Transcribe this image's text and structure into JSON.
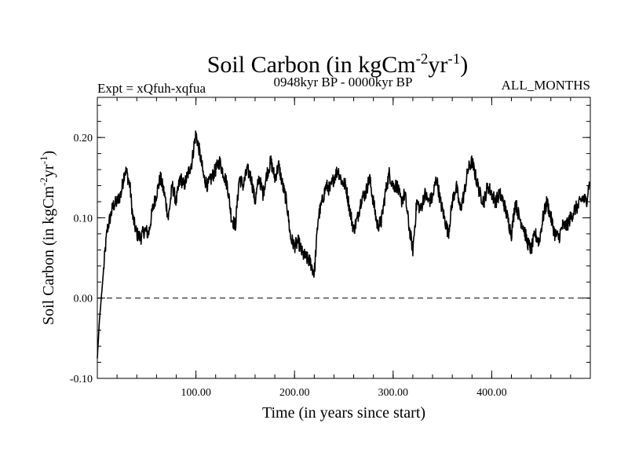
{
  "chart_data": {
    "type": "line",
    "title": {
      "prefix": "Soil Carbon (in kgCm",
      "sup1": "-2",
      "mid": "yr",
      "sup2": "-1",
      "suffix": ")"
    },
    "subtitle_left": "Expt = xQfuh-xqfua",
    "subtitle_center": "0948kyr BP - 0000kyr BP",
    "subtitle_right": "ALL_MONTHS",
    "xlabel": "Time (in years since start)",
    "ylabel": {
      "prefix": "Soil Carbon (in kgCm",
      "sup1": "-2",
      "mid": "yr",
      "sup2": "-1",
      "suffix": ")"
    },
    "xlim": [
      0,
      500
    ],
    "ylim": [
      -0.1,
      0.25
    ],
    "x_ticks": [
      100,
      200,
      300,
      400
    ],
    "x_tick_labels": [
      "100.00",
      "200.00",
      "300.00",
      "400.00"
    ],
    "y_ticks": [
      -0.1,
      0.0,
      0.1,
      0.2
    ],
    "y_tick_labels": [
      "-0.10",
      "0.00",
      "0.10",
      "0.20"
    ],
    "reference_line": {
      "y": 0.0,
      "style": "dashed"
    },
    "series": [
      {
        "name": "Soil Carbon",
        "color": "#000000",
        "x": [
          0,
          2,
          4,
          6,
          8,
          10,
          13,
          16,
          20,
          24,
          28,
          30,
          33,
          36,
          40,
          44,
          48,
          52,
          56,
          60,
          64,
          68,
          72,
          76,
          80,
          84,
          88,
          92,
          96,
          98,
          100,
          104,
          108,
          112,
          116,
          120,
          124,
          128,
          132,
          136,
          140,
          144,
          148,
          152,
          156,
          160,
          164,
          168,
          172,
          176,
          180,
          184,
          188,
          192,
          196,
          200,
          204,
          208,
          212,
          216,
          220,
          224,
          228,
          232,
          236,
          240,
          244,
          248,
          252,
          256,
          260,
          264,
          268,
          272,
          276,
          280,
          284,
          288,
          292,
          296,
          300,
          304,
          308,
          312,
          316,
          320,
          324,
          328,
          332,
          336,
          340,
          344,
          348,
          352,
          356,
          360,
          364,
          368,
          372,
          376,
          380,
          384,
          388,
          392,
          396,
          400,
          404,
          408,
          412,
          416,
          420,
          424,
          428,
          432,
          436,
          440,
          444,
          448,
          452,
          456,
          460,
          464,
          468,
          472,
          476,
          480,
          484,
          488,
          492,
          496,
          499
        ],
        "y": [
          -0.075,
          -0.03,
          0.0,
          0.03,
          0.06,
          0.085,
          0.1,
          0.115,
          0.12,
          0.13,
          0.16,
          0.155,
          0.14,
          0.1,
          0.08,
          0.075,
          0.085,
          0.08,
          0.11,
          0.13,
          0.15,
          0.13,
          0.1,
          0.14,
          0.12,
          0.15,
          0.14,
          0.155,
          0.17,
          0.19,
          0.205,
          0.18,
          0.15,
          0.14,
          0.15,
          0.16,
          0.17,
          0.155,
          0.14,
          0.1,
          0.09,
          0.15,
          0.14,
          0.16,
          0.15,
          0.12,
          0.15,
          0.13,
          0.155,
          0.17,
          0.15,
          0.165,
          0.14,
          0.12,
          0.075,
          0.065,
          0.07,
          0.055,
          0.05,
          0.045,
          0.03,
          0.1,
          0.12,
          0.14,
          0.135,
          0.15,
          0.16,
          0.145,
          0.14,
          0.11,
          0.085,
          0.1,
          0.125,
          0.13,
          0.15,
          0.12,
          0.09,
          0.095,
          0.13,
          0.155,
          0.14,
          0.14,
          0.12,
          0.13,
          0.09,
          0.06,
          0.12,
          0.11,
          0.13,
          0.12,
          0.125,
          0.15,
          0.12,
          0.1,
          0.08,
          0.12,
          0.14,
          0.11,
          0.13,
          0.16,
          0.17,
          0.15,
          0.13,
          0.12,
          0.14,
          0.13,
          0.12,
          0.13,
          0.12,
          0.1,
          0.08,
          0.12,
          0.1,
          0.09,
          0.07,
          0.06,
          0.08,
          0.07,
          0.1,
          0.12,
          0.1,
          0.08,
          0.075,
          0.09,
          0.09,
          0.1,
          0.11,
          0.115,
          0.125,
          0.12,
          0.145
        ]
      }
    ]
  }
}
